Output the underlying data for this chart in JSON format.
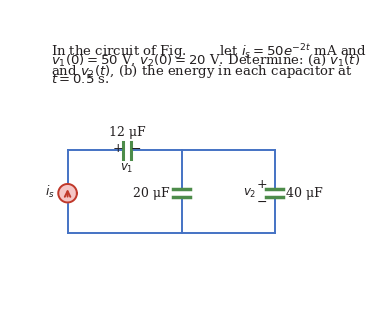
{
  "background_color": "#ffffff",
  "text_color": "#231f20",
  "circuit_color": "#4472c4",
  "capacitor_color": "#4d8c4a",
  "current_source_color": "#c0392b",
  "current_source_fill": "#f5c6c6",
  "title_line1": "In the circuit of Fig.        let $i_s = 50e^{-2t}$ mA and",
  "title_line2": "$v_1(0) = 50$ V, $v_2(0) = 20$ V. Determine: (a) $v_1(t)$",
  "title_line3": "and $v_2(t)$, (b) the energy in each capacitor at",
  "title_line4": "$t = 0.5$ s.",
  "font_size_text": 9.5
}
